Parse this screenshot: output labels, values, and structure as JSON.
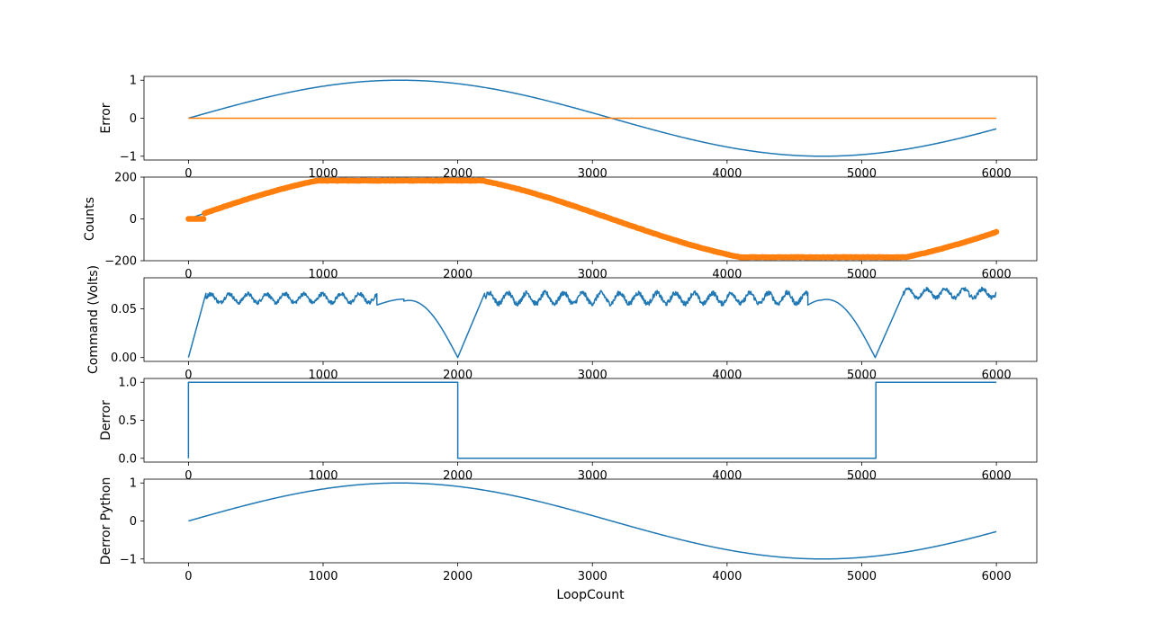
{
  "figure": {
    "background": "#ffffff"
  },
  "chart_data": [
    {
      "type": "line",
      "ylabel": "Error",
      "xlabel": "",
      "xlim": [
        -330,
        6300
      ],
      "ylim": [
        -1.1,
        1.1
      ],
      "xticks": [
        0,
        1000,
        2000,
        3000,
        4000,
        5000,
        6000
      ],
      "yticks": [
        -1,
        0,
        1
      ],
      "tick_labels": [
        "−1",
        "0",
        "1"
      ],
      "series": [
        {
          "color": "#1f77b4",
          "kind": "line",
          "shape": "sine",
          "params": {
            "amplitude": 1,
            "x_end": 6000
          }
        },
        {
          "color": "#ff7f0e",
          "kind": "line",
          "x": [
            0,
            6000
          ],
          "y": [
            0,
            0
          ]
        }
      ]
    },
    {
      "type": "scatter",
      "ylabel": "Counts",
      "xlabel": "",
      "xlim": [
        -330,
        6300
      ],
      "ylim": [
        -200,
        200
      ],
      "xticks": [
        0,
        1000,
        2000,
        3000,
        4000,
        5000,
        6000
      ],
      "yticks": [
        -200,
        0,
        200
      ],
      "tick_labels": [
        "−200",
        "0",
        "200"
      ],
      "series": [
        {
          "color": "#1f77b4",
          "kind": "line",
          "shape": "clipped_sine",
          "params": {
            "amplitude": 224,
            "clip": 183,
            "x_end": 6000
          }
        },
        {
          "color": "#ff7f0e",
          "kind": "dots",
          "shape": "clipped_sine",
          "params": {
            "amplitude": 224,
            "clip": 183,
            "x_end": 6000,
            "start_flat_until": 120
          }
        }
      ]
    },
    {
      "type": "line",
      "ylabel": "Command (Volts)",
      "xlabel": "",
      "xlim": [
        -330,
        6300
      ],
      "ylim": [
        -0.004,
        0.082
      ],
      "xticks": [
        0,
        1000,
        2000,
        3000,
        4000,
        5000,
        6000
      ],
      "yticks": [
        0.0,
        0.05
      ],
      "tick_labels": [
        "0.00",
        "0.05"
      ],
      "series": [
        {
          "color": "#1f77b4",
          "kind": "line",
          "shape": "command",
          "params": {
            "ramp_points": [
              [
                0,
                0
              ],
              [
                130,
                0.066
              ],
              [
                2000,
                0
              ],
              [
                2200,
                0.066
              ],
              [
                5100,
                0
              ],
              [
                5310,
                0.066
              ]
            ],
            "noisy_segments": [
              [
                130,
                1400,
                0.061,
                0.009
              ],
              [
                2200,
                4600,
                0.061,
                0.011
              ],
              [
                5310,
                6000,
                0.066,
                0.009
              ]
            ],
            "arches": [
              [
                1400,
                1600,
                0.054,
                0.06
              ],
              [
                1600,
                2000,
                0.058,
                0
              ],
              [
                4600,
                4700,
                0.054,
                0.059
              ],
              [
                4700,
                5100,
                0.059,
                0
              ]
            ]
          }
        }
      ]
    },
    {
      "type": "line",
      "ylabel": "Derror",
      "xlabel": "",
      "xlim": [
        -330,
        6300
      ],
      "ylim": [
        -0.05,
        1.05
      ],
      "xticks": [
        0,
        1000,
        2000,
        3000,
        4000,
        5000,
        6000
      ],
      "yticks": [
        0.0,
        0.5,
        1.0
      ],
      "tick_labels": [
        "0.0",
        "0.5",
        "1.0"
      ],
      "series": [
        {
          "color": "#1f77b4",
          "kind": "line",
          "x": [
            0,
            0,
            2000,
            2000,
            5105,
            5105,
            6000
          ],
          "y": [
            0,
            1,
            1,
            0,
            0,
            1,
            1
          ]
        }
      ]
    },
    {
      "type": "line",
      "ylabel": "Derror Python",
      "xlabel": "LoopCount",
      "xlim": [
        -330,
        6300
      ],
      "ylim": [
        -1.1,
        1.1
      ],
      "xticks": [
        0,
        1000,
        2000,
        3000,
        4000,
        5000,
        6000
      ],
      "yticks": [
        -1,
        0,
        1
      ],
      "tick_labels": [
        "−1",
        "0",
        "1"
      ],
      "series": [
        {
          "color": "#1f77b4",
          "kind": "line",
          "shape": "sine",
          "params": {
            "amplitude": 1,
            "x_end": 6000
          }
        }
      ]
    }
  ]
}
